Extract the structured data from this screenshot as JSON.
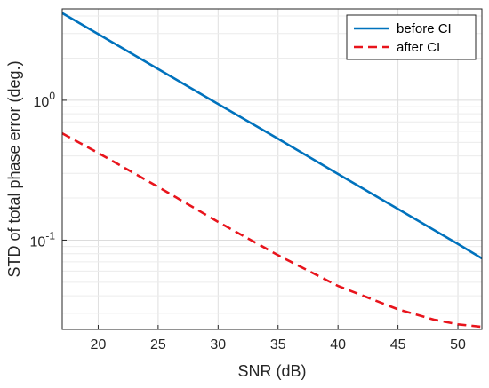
{
  "chart_data": {
    "type": "line",
    "title": "",
    "xlabel": "SNR (dB)",
    "ylabel": "STD of total phase error (deg.)",
    "xscale": "linear",
    "yscale": "log",
    "xlim": [
      17,
      52
    ],
    "ylim": [
      0.023,
      4.5
    ],
    "grid": true,
    "minor_grid": true,
    "legend_position": "top-right",
    "x_ticks": [
      20,
      25,
      30,
      35,
      40,
      45,
      50
    ],
    "x_tick_labels": [
      "20",
      "25",
      "30",
      "35",
      "40",
      "45",
      "50"
    ],
    "y_ticks": [
      0.1,
      1
    ],
    "y_tick_labels": [
      {
        "base": "10",
        "exp": "-1"
      },
      {
        "base": "10",
        "exp": "0"
      }
    ],
    "series": [
      {
        "name": "before CI",
        "color": "#0072BD",
        "style": "solid",
        "x": [
          17,
          20,
          25,
          30,
          35,
          40,
          45,
          50,
          52
        ],
        "y": [
          4.2,
          2.97,
          1.67,
          0.94,
          0.53,
          0.297,
          0.167,
          0.094,
          0.074
        ]
      },
      {
        "name": "after CI",
        "color": "#E8141C",
        "style": "dashed",
        "x": [
          17,
          20,
          25,
          30,
          35,
          40,
          45,
          48,
          50,
          52
        ],
        "y": [
          0.58,
          0.42,
          0.24,
          0.135,
          0.078,
          0.047,
          0.032,
          0.027,
          0.025,
          0.024
        ]
      }
    ]
  }
}
